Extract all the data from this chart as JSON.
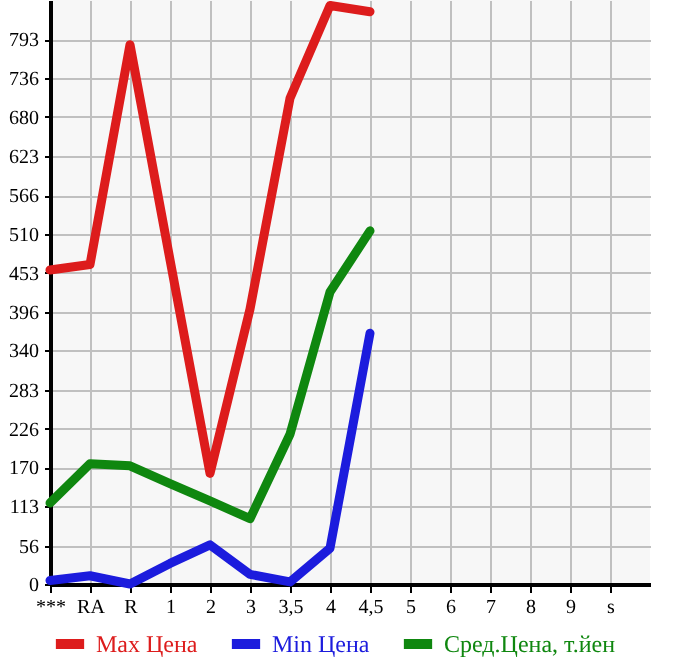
{
  "chart_data": {
    "type": "line",
    "categories": [
      "***",
      "RA",
      "R",
      "1",
      "2",
      "3",
      "3,5",
      "4",
      "4,5",
      "5",
      "6",
      "7",
      "8",
      "9",
      "s"
    ],
    "series": [
      {
        "name": "Max Цена",
        "color": "#dd1c1c",
        "values": [
          457,
          465,
          785,
          472,
          161,
          400,
          707,
          842,
          833,
          null,
          null,
          null,
          null,
          null,
          null
        ]
      },
      {
        "name": "Min Цена",
        "color": "#1c1cdd",
        "values": [
          5,
          12,
          0,
          30,
          57,
          14,
          3,
          52,
          365,
          null,
          null,
          null,
          null,
          null,
          null
        ]
      },
      {
        "name": "Сред.Цена, т.йен",
        "color": "#0f870f",
        "values": [
          118,
          175,
          172,
          146,
          121,
          95,
          218,
          425,
          514,
          null,
          null,
          null,
          null,
          null,
          null
        ]
      }
    ],
    "ylim": [
      0,
      850
    ],
    "yticks": [
      0,
      56,
      113,
      170,
      226,
      283,
      340,
      396,
      453,
      510,
      566,
      623,
      680,
      736,
      793
    ],
    "grid": true,
    "legend": "bottom",
    "marker": "none",
    "line_style": "solid"
  }
}
